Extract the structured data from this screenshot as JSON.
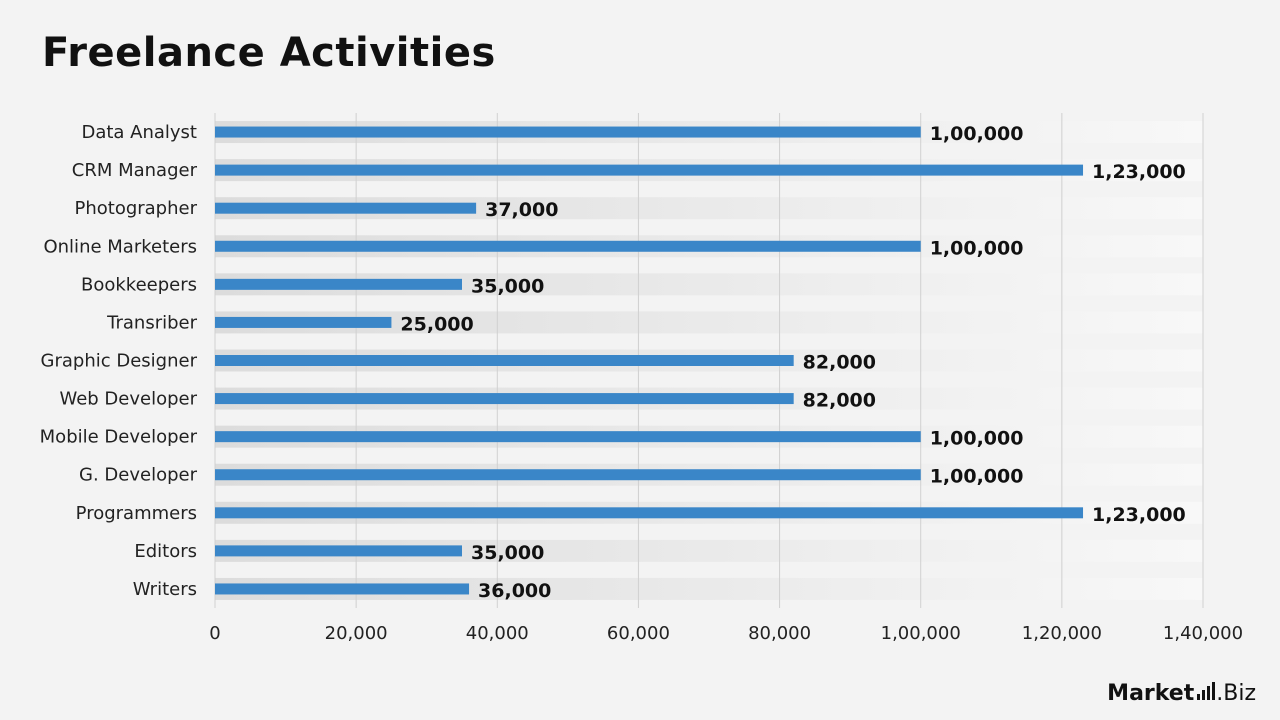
{
  "title": "Freelance Activities",
  "brand": {
    "name_bold": "Market",
    "name_rest": ".Biz",
    "logo_icon": "bar-chart-icon"
  },
  "colors": {
    "bar": "#3a86c8",
    "band_dark": "#dedede",
    "band_light": "#f6f6f6",
    "grid": "#d0d0d0",
    "background": "#f3f3f3"
  },
  "chart_data": {
    "type": "bar",
    "orientation": "horizontal",
    "categories": [
      "Data Analyst",
      "CRM Manager",
      "Photographer",
      "Online Marketers",
      "Bookkeepers",
      "Transriber",
      "Graphic Designer",
      "Web Developer",
      "Mobile Developer",
      "G. Developer",
      "Programmers",
      "Editors",
      "Writers"
    ],
    "values": [
      100000,
      123000,
      37000,
      100000,
      35000,
      25000,
      82000,
      82000,
      100000,
      100000,
      123000,
      35000,
      36000
    ],
    "value_labels": [
      "1,00,000",
      "1,23,000",
      "37,000",
      "1,00,000",
      "35,000",
      "25,000",
      "82,000",
      "82,000",
      "1,00,000",
      "1,00,000",
      "1,23,000",
      "35,000",
      "36,000"
    ],
    "x_ticks": [
      0,
      20000,
      40000,
      60000,
      80000,
      100000,
      120000,
      140000
    ],
    "x_tick_labels": [
      "0",
      "20,000",
      "40,000",
      "60,000",
      "80,000",
      "1,00,000",
      "1,20,000",
      "1,40,000"
    ],
    "xlim": [
      0,
      140000
    ],
    "grid": true,
    "legend": "none",
    "title": "Freelance Activities",
    "xlabel": "",
    "ylabel": ""
  }
}
